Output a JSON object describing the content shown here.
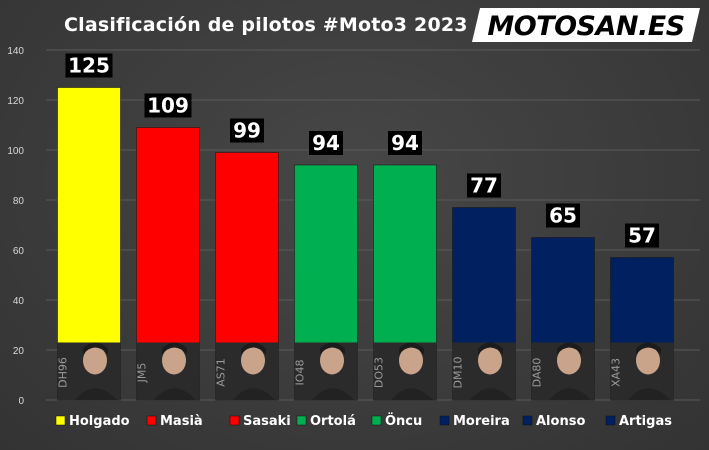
{
  "title": "Clasificación de pilotos #Moto3 2023",
  "logo": {
    "text": "MOTOSAN.ES",
    "accent": "#e30613"
  },
  "chart_data": {
    "type": "bar",
    "title": "Clasificación de pilotos #Moto3 2023",
    "categories": [
      "Holgado",
      "Masià",
      "Sasaki",
      "Ortolá",
      "Öncu",
      "Moreira",
      "Alonso",
      "Artigas"
    ],
    "values": [
      125,
      109,
      99,
      94,
      94,
      77,
      65,
      57
    ],
    "colors": [
      "#ffff00",
      "#ff0000",
      "#ff0000",
      "#00b050",
      "#00b050",
      "#002060",
      "#002060",
      "#002060"
    ],
    "rider_ids": [
      "DH96",
      "JM5",
      "AS71",
      "IO48",
      "DO53",
      "DM10",
      "DA80",
      "XA43"
    ],
    "ylim": [
      0,
      140
    ],
    "yticks": [
      0,
      20,
      40,
      60,
      80,
      100,
      120,
      140
    ],
    "grid": true,
    "legend_position": "bottom",
    "xlabel": "",
    "ylabel": ""
  }
}
